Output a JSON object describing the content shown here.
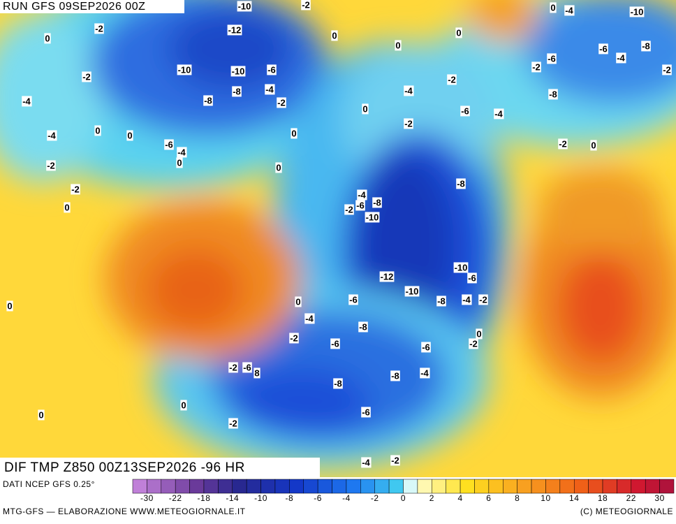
{
  "header": {
    "run": "RUN GFS 09SEP2026 00Z",
    "field": "DIF TMP Z850 00Z13SEP2026 -96 HR"
  },
  "map": {
    "labels": [
      -10,
      -2,
      -4,
      -10,
      0,
      -2,
      0,
      -12,
      0,
      0,
      0,
      -6,
      -8,
      -4,
      -2,
      -6,
      -2,
      -10,
      -10,
      -6,
      -2,
      -4,
      -8,
      -8,
      -2,
      -4,
      -2,
      -8,
      -4,
      0,
      -6,
      -4,
      0,
      0,
      -4,
      0,
      -2,
      -6,
      -4,
      -2,
      0,
      0,
      -2,
      0,
      -8,
      -2,
      -4,
      -6,
      -8,
      0,
      -2,
      -10,
      -10,
      -12,
      -6,
      -10,
      -8,
      -4,
      -2,
      0,
      0,
      -6,
      -4,
      -8,
      0,
      -2,
      -6,
      -6,
      -2,
      -2,
      -6,
      8,
      -4,
      -8,
      -8,
      0,
      -6,
      0,
      -2,
      -4,
      -2
    ]
  },
  "legend": {
    "source": "DATI NCEP GFS 0.25°",
    "ticks": [
      -30,
      -22,
      -18,
      -14,
      -10,
      -8,
      -6,
      -4,
      -2,
      0,
      2,
      4,
      6,
      8,
      10,
      14,
      18,
      22,
      30
    ]
  },
  "footer": {
    "left": "MTG-GFS — ELABORAZIONE WWW.METEOGIORNALE.IT",
    "right": "(C) METEOGIORNALE"
  }
}
